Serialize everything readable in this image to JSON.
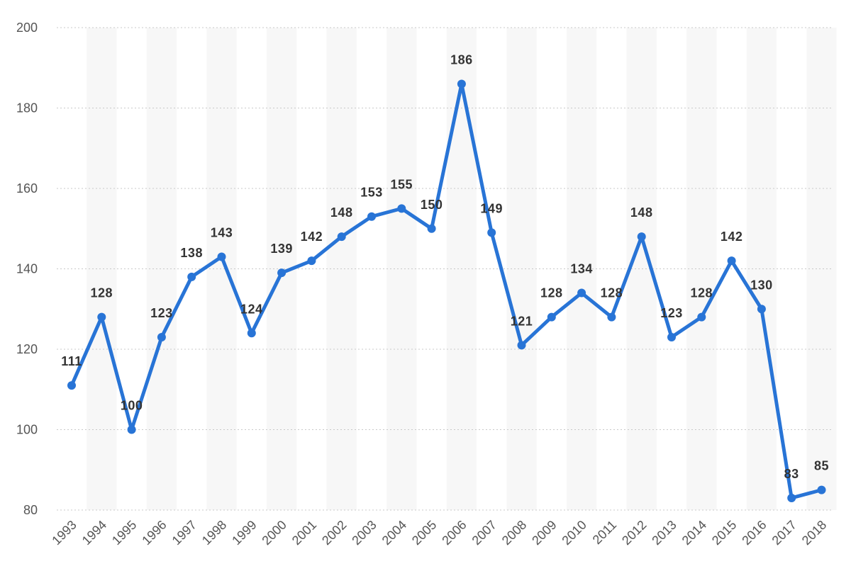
{
  "chart_data": {
    "type": "line",
    "title": "",
    "xlabel": "",
    "ylabel": "",
    "x": [
      "1993",
      "1994",
      "1995",
      "1996",
      "1997",
      "1998",
      "1999",
      "2000",
      "2001",
      "2002",
      "2003",
      "2004",
      "2005",
      "2006",
      "2007",
      "2008",
      "2009",
      "2010",
      "2011",
      "2012",
      "2013",
      "2014",
      "2015",
      "2016",
      "2017",
      "2018"
    ],
    "series": [
      {
        "values": [
          111,
          128,
          100,
          123,
          138,
          143,
          124,
          139,
          142,
          148,
          153,
          155,
          150,
          186,
          149,
          121,
          128,
          134,
          128,
          148,
          123,
          128,
          142,
          130,
          83,
          85
        ]
      }
    ],
    "y_ticks": [
      80,
      100,
      120,
      140,
      160,
      180,
      200
    ],
    "ylim": [
      80,
      200
    ],
    "grid": true,
    "data_labels": true,
    "line_color": "#2874d6",
    "legend": "none"
  }
}
